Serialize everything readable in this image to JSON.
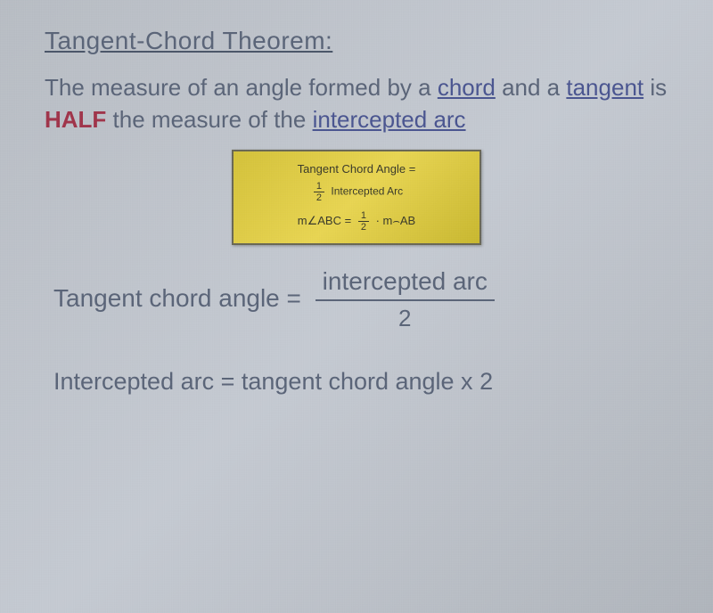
{
  "title": "Tangent-Chord Theorem:",
  "body": {
    "part1": "The measure of an angle formed by a ",
    "chord": "chord",
    "part2": " and a ",
    "tangent": "tangent",
    "part3": " is ",
    "half": "HALF",
    "part4": " the measure of the ",
    "intercepted": "intercepted arc"
  },
  "formulaBox": {
    "line1_a": "Tangent Chord Angle =",
    "frac1_num": "1",
    "frac1_den": "2",
    "line1_b": "Intercepted Arc",
    "line3_a": "m∠ABC =",
    "frac2_num": "1",
    "frac2_den": "2",
    "line3_b": "· m⌢AB",
    "colors": {
      "background": "#d4c23a",
      "border": "#6a6855",
      "text": "#3a3a2a"
    }
  },
  "equation1": {
    "lhs": "Tangent chord angle = ",
    "num": "intercepted arc",
    "den": "2"
  },
  "equation2": "Intercepted arc = tangent chord angle x 2",
  "colors": {
    "background": "#b8bdc4",
    "text": "#5a6478",
    "link": "#4a5590",
    "half": "#a0344a"
  }
}
